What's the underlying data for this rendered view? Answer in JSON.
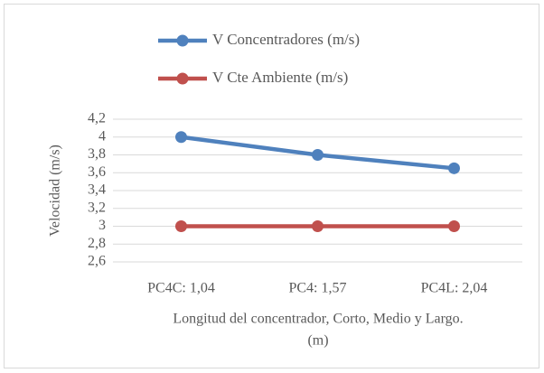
{
  "chart_data": {
    "type": "line",
    "categories": [
      "PC4C: 1,04",
      "PC4: 1,57",
      "PC4L: 2,04"
    ],
    "series": [
      {
        "name": "V Concentradores (m/s)",
        "color": "#4f81bd",
        "values": [
          4,
          3.8,
          3.65
        ]
      },
      {
        "name": "V Cte Ambiente (m/s)",
        "color": "#c0504d",
        "values": [
          3,
          3,
          3
        ]
      }
    ],
    "ylabel": "Velocidad (m/s)",
    "xlabel": [
      "Longitud del concentrador, Corto, Medio y Largo.",
      "(m)"
    ],
    "ylim": [
      2.6,
      4.2
    ],
    "yticks": [
      {
        "value": 2.6,
        "label": "2,6"
      },
      {
        "value": 2.8,
        "label": "2,8"
      },
      3,
      {
        "value": 3.2,
        "label": "3,2"
      },
      {
        "value": 3.4,
        "label": "3,4"
      },
      {
        "value": 3.6,
        "label": "3,6"
      },
      {
        "value": 3.8,
        "label": "3,8"
      },
      4,
      {
        "value": 4.2,
        "label": "4,2"
      }
    ],
    "grid": true,
    "legend": "top"
  }
}
